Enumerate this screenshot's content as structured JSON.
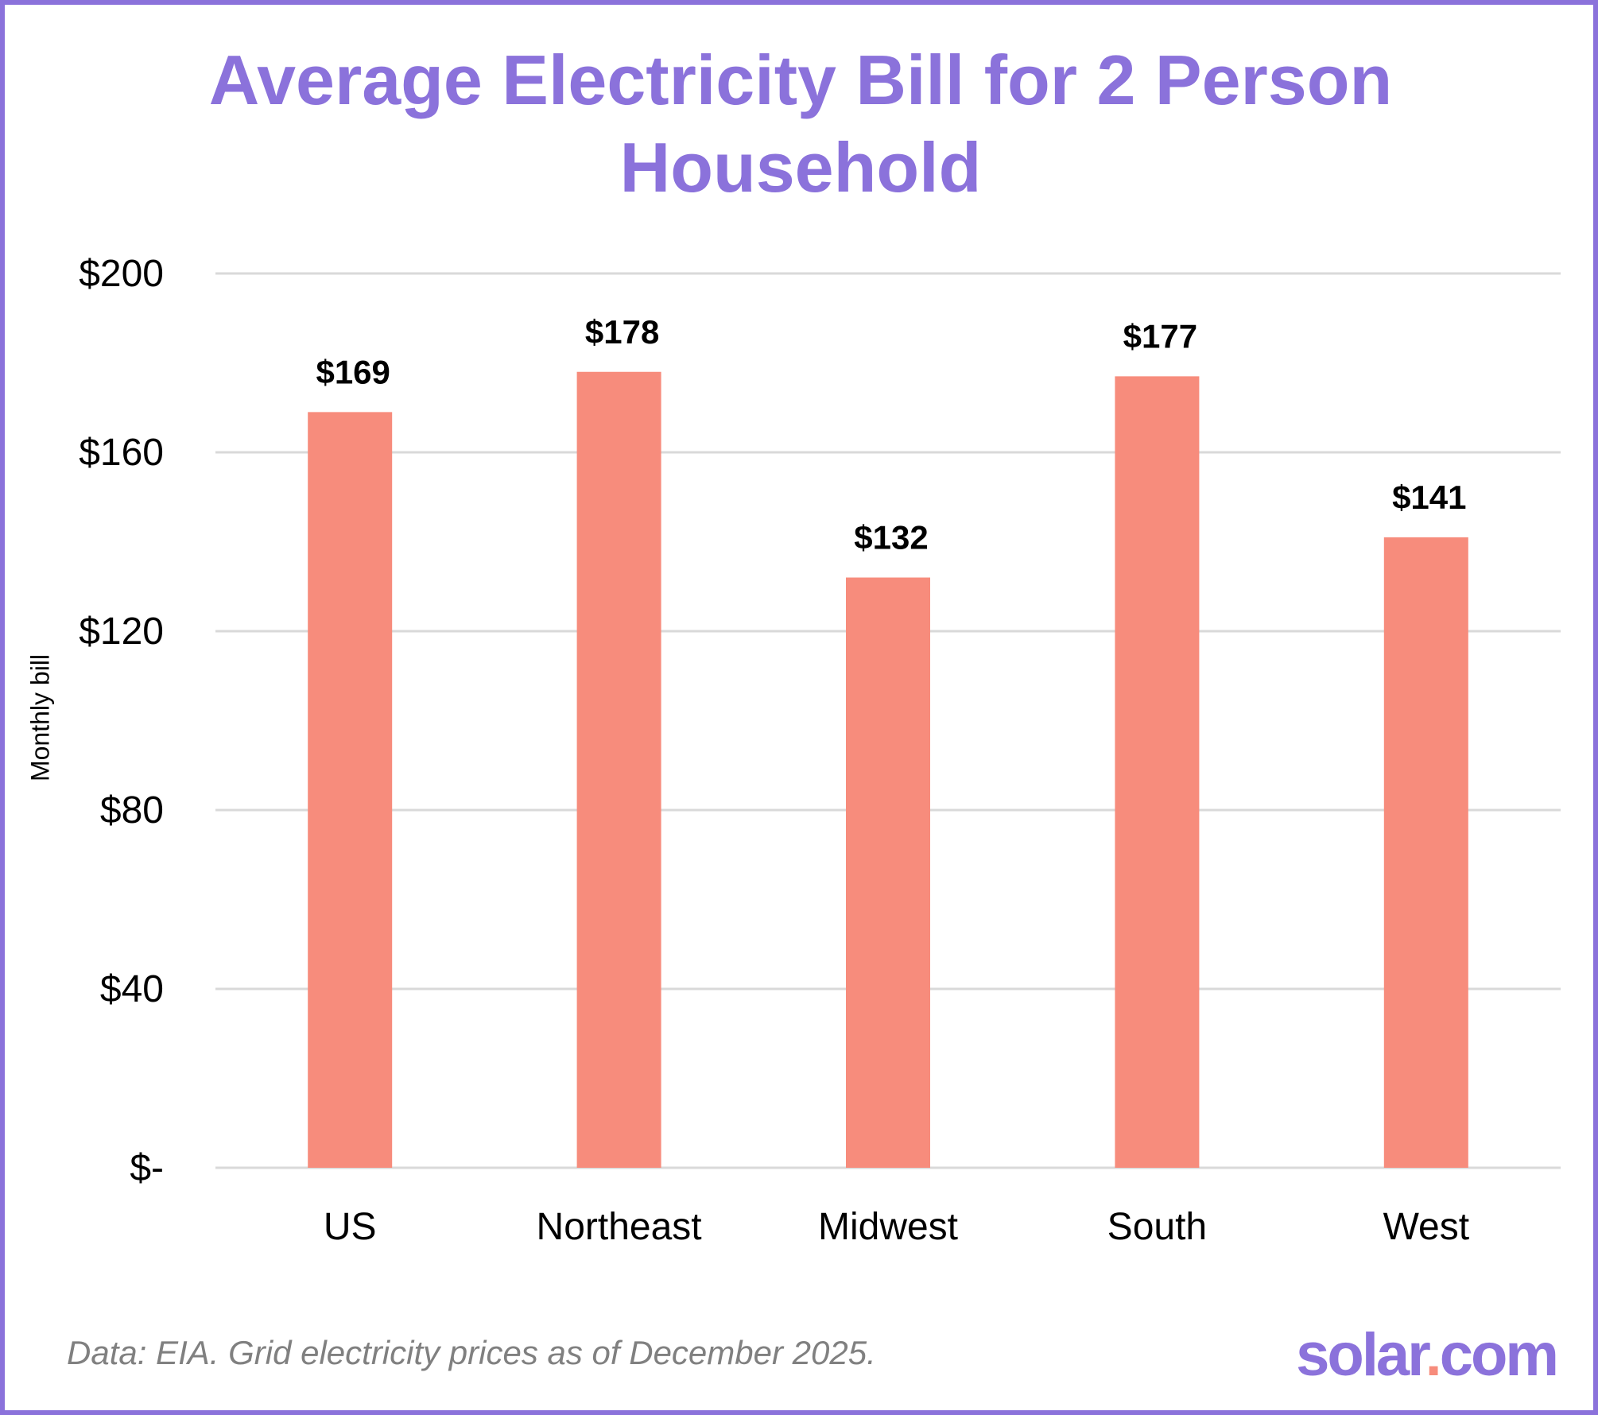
{
  "title_lines": [
    "Average Electricity Bill for 2 Person",
    "Household"
  ],
  "footer": "Data: EIA. Grid electricity prices as of December 2025.",
  "logo": {
    "text": "solar.com",
    "brand_color": "#8b72db",
    "dot_color": "#f78c7c"
  },
  "chart_data": {
    "type": "bar",
    "title": "Average Electricity Bill for 2 Person Household",
    "categories": [
      "US",
      "Northeast",
      "Midwest",
      "South",
      "West"
    ],
    "values": [
      169,
      178,
      132,
      177,
      141
    ],
    "data_labels": [
      "$169",
      "$178",
      "$132",
      "$177",
      "$141"
    ],
    "xlabel": "",
    "ylabel": "Monthly bill",
    "ylim": [
      0,
      200
    ],
    "yticks": [
      0,
      40,
      80,
      120,
      160,
      200
    ],
    "ytick_labels": [
      "$-",
      "$40",
      "$80",
      "$120",
      "$160",
      "$200"
    ],
    "grid": true,
    "bar_color": "#f78c7c",
    "grid_color": "#d9d9d9",
    "legend": "none"
  }
}
